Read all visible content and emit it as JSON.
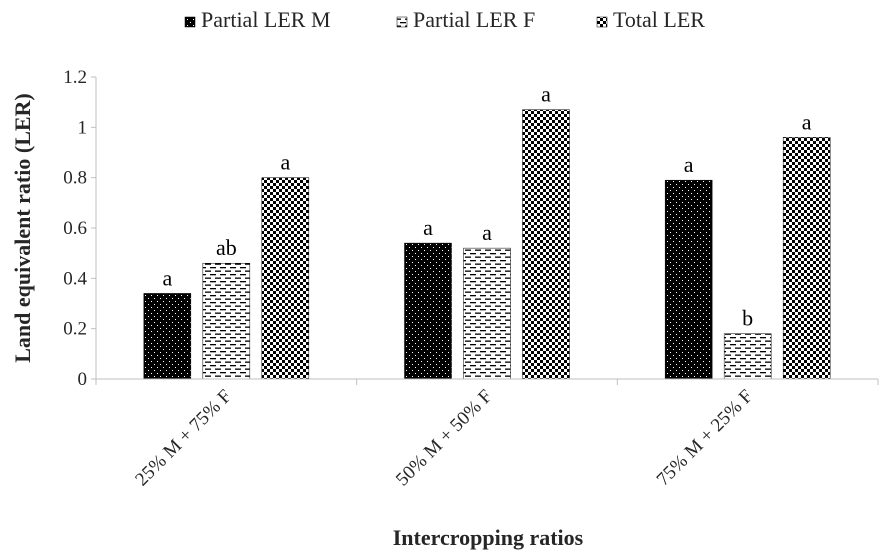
{
  "chart_data": {
    "type": "bar",
    "title": "",
    "xlabel": "Intercropping ratios",
    "ylabel": "Land equivalent ratio (LER)",
    "ylim": [
      0,
      1.2
    ],
    "yticks": [
      "0",
      "0.2",
      "0.4",
      "0.6",
      "0.8",
      "1",
      "1.2"
    ],
    "categories": [
      "25% M + 75% F",
      "50% M + 50% F",
      "75% M + 25% F"
    ],
    "legend_position": "top",
    "grid": false,
    "series": [
      {
        "name": "Partial LER M",
        "values": [
          0.34,
          0.54,
          0.79
        ],
        "labels": [
          "a",
          "a",
          "a"
        ],
        "pattern": "dots-on-black",
        "color": "#000000"
      },
      {
        "name": "Partial LER F",
        "values": [
          0.46,
          0.52,
          0.18
        ],
        "labels": [
          "ab",
          "a",
          "b"
        ],
        "pattern": "dashes-on-white",
        "color": "#000000"
      },
      {
        "name": "Total LER",
        "values": [
          0.8,
          1.07,
          0.96
        ],
        "labels": [
          "a",
          "a",
          "a"
        ],
        "pattern": "checkerboard",
        "color": "#000000"
      }
    ]
  }
}
